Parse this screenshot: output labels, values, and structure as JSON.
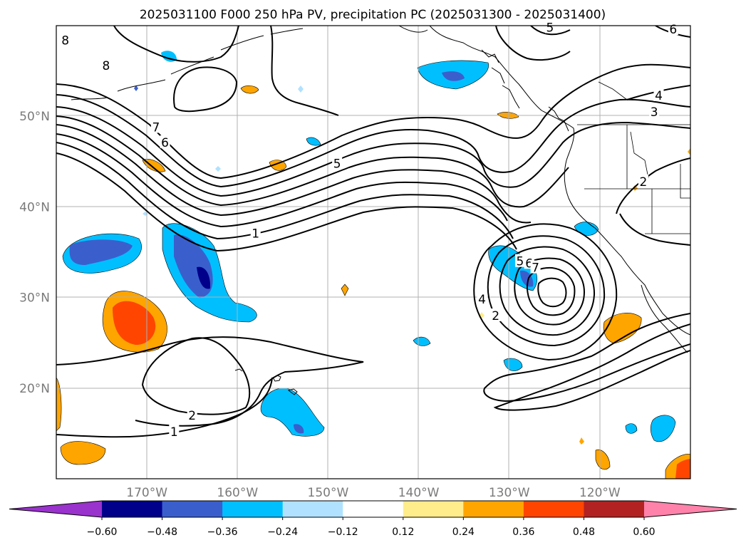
{
  "title": "2025031100 F000 250 hPa PV, precipitation PC (2025031300 - 2025031400)",
  "lat_labels": [
    {
      "lat": 50,
      "label": "50°N"
    },
    {
      "lat": 40,
      "label": "40°N"
    },
    {
      "lat": 30,
      "label": "30°N"
    },
    {
      "lat": 20,
      "label": "20°N"
    }
  ],
  "lon_labels": [
    {
      "lon": -170,
      "label": "170°W"
    },
    {
      "lon": -160,
      "label": "160°W"
    },
    {
      "lon": -150,
      "label": "150°W"
    },
    {
      "lon": -140,
      "label": "140°W"
    },
    {
      "lon": -130,
      "label": "130°W"
    },
    {
      "lon": -120,
      "label": "120°W"
    }
  ],
  "extent": {
    "lon_min": -180,
    "lon_max": -110,
    "lat_min": 10,
    "lat_max": 60
  },
  "colorbar": {
    "colors": [
      "#9a32cd",
      "#00008b",
      "#3a5fcd",
      "#00bfff",
      "#b0e2ff",
      "#ffffff",
      "#ffec8b",
      "#ffa500",
      "#ff4500",
      "#b22222",
      "#ff82ab"
    ],
    "tick_labels": [
      "−0.60",
      "−0.48",
      "−0.36",
      "−0.24",
      "−0.12",
      "0.12",
      "0.24",
      "0.36",
      "0.48",
      "0.60"
    ]
  },
  "contour_labels": [
    {
      "text": "8",
      "lon": -179,
      "lat": 58.4
    },
    {
      "text": "8",
      "lon": -174.5,
      "lat": 55.6
    },
    {
      "text": "7",
      "lon": -169,
      "lat": 48.8
    },
    {
      "text": "6",
      "lon": -168,
      "lat": 47.1
    },
    {
      "text": "5",
      "lon": -149,
      "lat": 44.8
    },
    {
      "text": "1",
      "lon": -158,
      "lat": 37.1
    },
    {
      "text": "2",
      "lon": -165,
      "lat": 17.0
    },
    {
      "text": "1",
      "lon": -167,
      "lat": 15.2
    },
    {
      "text": "5",
      "lon": -125.5,
      "lat": 59.8
    },
    {
      "text": "6",
      "lon": -111.9,
      "lat": 59.6
    },
    {
      "text": "4",
      "lon": -113.5,
      "lat": 52.3
    },
    {
      "text": "3",
      "lon": -114,
      "lat": 50.5
    },
    {
      "text": "2",
      "lon": -115.2,
      "lat": 42.8
    },
    {
      "text": "2",
      "lon": -131.5,
      "lat": 28.0
    },
    {
      "text": "4",
      "lon": -133,
      "lat": 29.8
    },
    {
      "text": "5",
      "lon": -128.8,
      "lat": 34.0
    },
    {
      "text": "6",
      "lon": -127.8,
      "lat": 33.8
    },
    {
      "text": "7",
      "lon": -127.1,
      "lat": 33.3
    }
  ]
}
